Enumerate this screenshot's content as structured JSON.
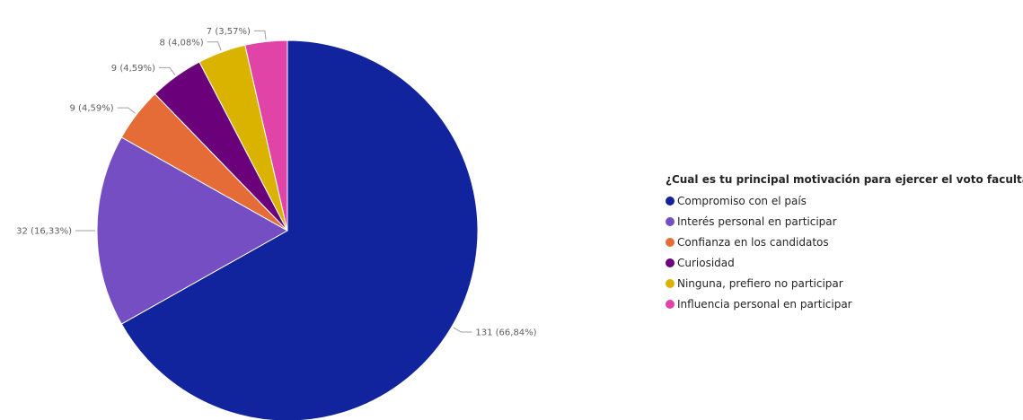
{
  "chart_data": {
    "type": "pie",
    "title": "",
    "legend_title": "¿Cual es tu principal motivación para ejercer el voto facultativo?",
    "legend_position": "right",
    "slices": [
      {
        "label": "Compromiso con el país",
        "value": 131,
        "percent_label": "131 (66,84%)",
        "color": "#12239e"
      },
      {
        "label": "Interés personal en participar",
        "value": 32,
        "percent_label": "32 (16,33%)",
        "color": "#744ec2"
      },
      {
        "label": "Confianza en los candidatos",
        "value": 9,
        "percent_label": "9 (4,59%)",
        "color": "#e66c37"
      },
      {
        "label": "Curiosidad",
        "value": 9,
        "percent_label": "9 (4,59%)",
        "color": "#6b007b"
      },
      {
        "label": "Ninguna, prefiero no participar",
        "value": 8,
        "percent_label": "8 (4,08%)",
        "color": "#d9b300"
      },
      {
        "label": "Influencia personal en participar",
        "value": 7,
        "percent_label": "7 (3,57%)",
        "color": "#e044a7"
      }
    ]
  }
}
